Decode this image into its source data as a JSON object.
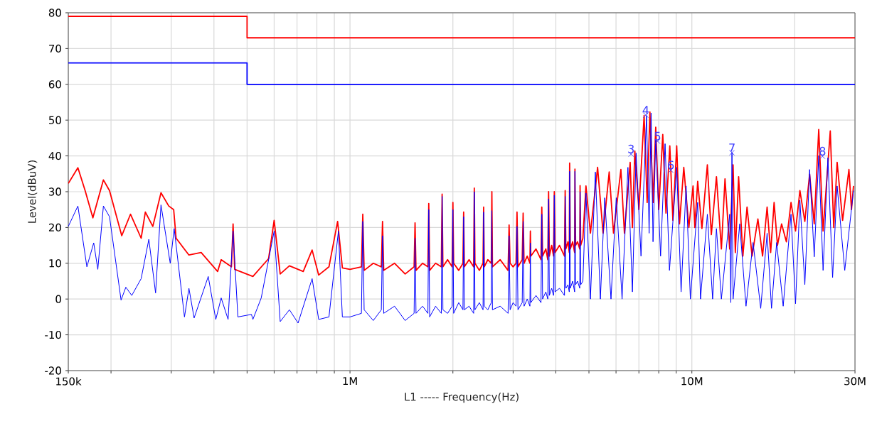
{
  "chart_data": {
    "type": "line",
    "xlabel": "L1 ----- Frequency(Hz)",
    "ylabel": "Level(dBuV)",
    "log": "x",
    "grid": true,
    "marker": "none",
    "line_style": "solid",
    "xlim": [
      150000,
      30000000
    ],
    "ylim": [
      -20,
      80
    ],
    "xticks": [
      {
        "value": 150000,
        "label": "150k"
      },
      {
        "value": 200000,
        "label": null
      },
      {
        "value": 300000,
        "label": null
      },
      {
        "value": 400000,
        "label": null
      },
      {
        "value": 500000,
        "label": null
      },
      {
        "value": 600000,
        "label": null
      },
      {
        "value": 700000,
        "label": null
      },
      {
        "value": 800000,
        "label": null
      },
      {
        "value": 900000,
        "label": null
      },
      {
        "value": 1000000,
        "label": "1M"
      },
      {
        "value": 2000000,
        "label": null
      },
      {
        "value": 3000000,
        "label": null
      },
      {
        "value": 4000000,
        "label": null
      },
      {
        "value": 5000000,
        "label": null
      },
      {
        "value": 6000000,
        "label": null
      },
      {
        "value": 7000000,
        "label": null
      },
      {
        "value": 8000000,
        "label": null
      },
      {
        "value": 9000000,
        "label": null
      },
      {
        "value": 10000000,
        "label": "10M"
      },
      {
        "value": 20000000,
        "label": null
      },
      {
        "value": 30000000,
        "label": "30M"
      }
    ],
    "yticks": [
      -20,
      -10,
      0,
      10,
      20,
      30,
      40,
      50,
      60,
      70,
      80
    ],
    "series": [
      {
        "type": "step",
        "color": "#ff0000",
        "x": [
          150000,
          500000,
          30000000
        ],
        "values": [
          79,
          73,
          73
        ]
      },
      {
        "type": "step",
        "color": "#0000ff",
        "x": [
          150000,
          500000,
          30000000
        ],
        "values": [
          66,
          60,
          60
        ]
      },
      {
        "color": "#ff0000",
        "x": [
          150000,
          160000,
          168000,
          177000,
          190000,
          198000,
          215000,
          228000,
          245000,
          252000,
          265000,
          280000,
          295000,
          305000,
          310000,
          338000,
          367000,
          410000,
          420000,
          450000,
          455000,
          460000,
          520000,
          578000,
          600000,
          625000,
          665000,
          730000,
          775000,
          810000,
          868000,
          920000,
          950000,
          1000000,
          1080000,
          1090000,
          1100000,
          1170000,
          1235000,
          1245000,
          1255000,
          1350000,
          1450000,
          1540000,
          1550000,
          1560000,
          1630000,
          1690000,
          1700000,
          1710000,
          1780000,
          1850000,
          1860000,
          1870000,
          1930000,
          1990000,
          2000000,
          2010000,
          2080000,
          2140000,
          2150000,
          2160000,
          2230000,
          2300000,
          2310000,
          2320000,
          2390000,
          2450000,
          2460000,
          2470000,
          2530000,
          2590000,
          2600000,
          2610000,
          2750000,
          2900000,
          2920000,
          2940000,
          3000000,
          3060000,
          3080000,
          3100000,
          3190000,
          3210000,
          3230000,
          3300000,
          3360000,
          3370000,
          3380000,
          3500000,
          3620000,
          3640000,
          3660000,
          3740000,
          3790000,
          3810000,
          3830000,
          3890000,
          3940000,
          3960000,
          3980000,
          4100000,
          4240000,
          4260000,
          4280000,
          4340000,
          4380000,
          4390000,
          4410000,
          4480000,
          4540000,
          4550000,
          4570000,
          4630000,
          4700000,
          4710000,
          4730000,
          4800000,
          4900000,
          5050000,
          5300000,
          5500000,
          5730000,
          5900000,
          6200000,
          6350000,
          6600000,
          6700000,
          6810000,
          7000000,
          7250000,
          7400000,
          7540000,
          7700000,
          7840000,
          8000000,
          8220000,
          8400000,
          8620000,
          8800000,
          9030000,
          9200000,
          9470000,
          9800000,
          10080000,
          10200000,
          10400000,
          10700000,
          11100000,
          11400000,
          11800000,
          12200000,
          12500000,
          12900000,
          13200000,
          13400000,
          13700000,
          14100000,
          14500000,
          15000000,
          15600000,
          16100000,
          16600000,
          17000000,
          17400000,
          17800000,
          18300000,
          18900000,
          19500000,
          20100000,
          20700000,
          21400000,
          22100000,
          22800000,
          23500000,
          24200000,
          25400000,
          26000000,
          26600000,
          27600000,
          28800000,
          29300000,
          29700000
        ],
        "values": [
          32.3,
          36.7,
          30.3,
          22.7,
          33.3,
          30.3,
          17.7,
          23.7,
          17.0,
          24.3,
          20.3,
          29.7,
          26.0,
          25.0,
          17.0,
          12.3,
          13.0,
          7.7,
          11.0,
          9.0,
          21.0,
          8.3,
          6.3,
          11.3,
          22.0,
          7.0,
          9.3,
          7.7,
          13.7,
          6.7,
          9.0,
          21.7,
          8.7,
          8.3,
          9,
          23.7,
          8,
          10,
          9,
          21.7,
          8,
          10,
          7,
          9,
          21.3,
          8,
          10,
          9,
          26.7,
          8,
          10,
          9,
          29.3,
          9,
          11,
          9,
          27.0,
          10,
          8,
          10,
          24.3,
          9,
          11,
          9,
          31.0,
          10,
          8,
          10,
          25.7,
          9,
          11,
          10,
          30.0,
          9,
          11,
          8,
          20.7,
          10,
          9,
          10,
          24.3,
          9,
          11,
          24.0,
          10,
          12,
          10,
          19.0,
          12,
          14,
          11,
          25.7,
          12,
          14,
          11,
          30.0,
          12,
          15,
          12,
          30.0,
          13,
          15,
          12,
          30.3,
          14,
          16,
          13,
          38.0,
          14,
          16,
          13,
          36.3,
          15,
          16,
          14,
          31.7,
          15,
          17,
          31.6,
          18.4,
          36.8,
          18.4,
          35.5,
          18.4,
          36.2,
          18.4,
          38.2,
          20,
          41.4,
          25,
          51.3,
          27,
          52.3,
          27,
          48,
          25,
          46,
          24,
          42.8,
          22,
          42.8,
          21,
          36.8,
          20,
          31.6,
          20,
          32.9,
          19.7,
          37.5,
          18,
          34.2,
          14,
          33.6,
          14,
          37.5,
          13,
          34.2,
          12,
          25.7,
          12,
          22.4,
          12,
          25.7,
          13,
          27,
          15,
          21,
          16,
          27,
          19,
          30.3,
          21.7,
          34.9,
          21,
          47.4,
          19,
          47,
          20,
          38.2,
          22,
          36.2,
          25,
          31.6
        ]
      },
      {
        "color": "#0000ff",
        "x": [
          150000,
          160000,
          170000,
          178000,
          183000,
          190000,
          198000,
          214000,
          221000,
          230000,
          245000,
          258000,
          270000,
          280000,
          298000,
          306000,
          328000,
          338000,
          350000,
          385000,
          405000,
          420000,
          440000,
          455000,
          470000,
          515000,
          520000,
          550000,
          600000,
          625000,
          665000,
          705000,
          775000,
          810000,
          868000,
          925000,
          950000,
          1000000,
          1080000,
          1090000,
          1100000,
          1170000,
          1235000,
          1245000,
          1255000,
          1350000,
          1450000,
          1540000,
          1550000,
          1560000,
          1630000,
          1690000,
          1700000,
          1710000,
          1780000,
          1850000,
          1860000,
          1870000,
          1930000,
          1990000,
          2000000,
          2010000,
          2080000,
          2140000,
          2150000,
          2160000,
          2230000,
          2300000,
          2310000,
          2320000,
          2390000,
          2450000,
          2460000,
          2470000,
          2530000,
          2590000,
          2600000,
          2610000,
          2750000,
          2900000,
          2920000,
          2940000,
          3000000,
          3060000,
          3080000,
          3100000,
          3190000,
          3210000,
          3230000,
          3300000,
          3360000,
          3370000,
          3380000,
          3500000,
          3620000,
          3640000,
          3660000,
          3740000,
          3790000,
          3810000,
          3830000,
          3890000,
          3940000,
          3960000,
          3980000,
          4100000,
          4240000,
          4260000,
          4280000,
          4340000,
          4380000,
          4390000,
          4410000,
          4480000,
          4540000,
          4550000,
          4570000,
          4630000,
          4700000,
          4710000,
          4730000,
          4800000,
          4900000,
          5050000,
          5220000,
          5400000,
          5560000,
          5800000,
          6010000,
          6250000,
          6500000,
          6700000,
          6870000,
          7100000,
          7370000,
          7500000,
          7600000,
          7700000,
          7840000,
          8100000,
          8350000,
          8600000,
          9030000,
          9300000,
          9620000,
          9900000,
          10400000,
          10600000,
          11100000,
          11500000,
          11800000,
          12200000,
          12900000,
          13000000,
          13100000,
          13200000,
          13800000,
          14400000,
          15100000,
          15900000,
          16600000,
          17100000,
          17700000,
          18500000,
          19500000,
          20100000,
          20700000,
          21400000,
          22100000,
          22800000,
          23500000,
          24200000,
          25000000,
          25800000,
          26600000,
          28000000,
          29700000
        ],
        "values": [
          20.3,
          26.0,
          9.0,
          15.7,
          8.3,
          26.0,
          23.0,
          -0.3,
          3.3,
          1.0,
          5.7,
          16.7,
          1.7,
          26.3,
          10.0,
          19.7,
          -5.0,
          3.0,
          -5.3,
          6.3,
          -5.7,
          0.3,
          -5.7,
          19.0,
          -5.0,
          -4.3,
          -5.7,
          0.3,
          19.0,
          -6.3,
          -3.0,
          -6.7,
          5.7,
          -5.7,
          -5.0,
          19.0,
          -5.0,
          -5,
          -4,
          21.7,
          -3,
          -6,
          -3,
          17.7,
          -4,
          -2,
          -6,
          -4,
          17.0,
          -4,
          -2,
          -4,
          25.0,
          -5,
          -2,
          -4,
          28.7,
          -3,
          -4,
          -2,
          25.0,
          -4,
          -1,
          -3,
          23.0,
          -3,
          -2,
          -4,
          30.0,
          -3,
          -1,
          -3,
          24.3,
          -2,
          -3,
          -1,
          24.7,
          -3,
          -2,
          -4,
          17.7,
          -3,
          -1,
          -2,
          20.3,
          -3,
          -1,
          21.7,
          -2,
          0,
          -2,
          15.7,
          -1,
          1,
          -1,
          23.7,
          0,
          2,
          0,
          28.0,
          1,
          3,
          1,
          29.0,
          2,
          3,
          1,
          28.7,
          3,
          4,
          2,
          35.7,
          3,
          5,
          2,
          35.7,
          4,
          5,
          3,
          30.0,
          4,
          5,
          29.6,
          0,
          35.5,
          0,
          28.3,
          0,
          28.3,
          0,
          36.8,
          2,
          40.8,
          12,
          51.3,
          18.4,
          52,
          16,
          44.7,
          12,
          43.4,
          8,
          36.8,
          2,
          31.6,
          0,
          27,
          0,
          23.7,
          0,
          19.7,
          0,
          23.7,
          -1,
          40.9,
          0,
          21,
          -2,
          15.8,
          -2.6,
          18.4,
          -2.6,
          15.8,
          -2,
          23.7,
          -1.3,
          27.6,
          4,
          36.2,
          11.8,
          40.1,
          8,
          39.5,
          6,
          31.6,
          8,
          30.3
        ]
      }
    ],
    "annotations": [
      {
        "text": "3",
        "x": 6640000,
        "y": 40.5
      },
      {
        "text": "4",
        "x": 7330000,
        "y": 51.4
      },
      {
        "text": "5",
        "x": 7940000,
        "y": 44.1
      },
      {
        "text": "6",
        "x": 8680000,
        "y": 36.0
      },
      {
        "text": "7",
        "x": 13100000,
        "y": 40.9
      },
      {
        "text": "8",
        "x": 24100000,
        "y": 39.9
      }
    ]
  }
}
